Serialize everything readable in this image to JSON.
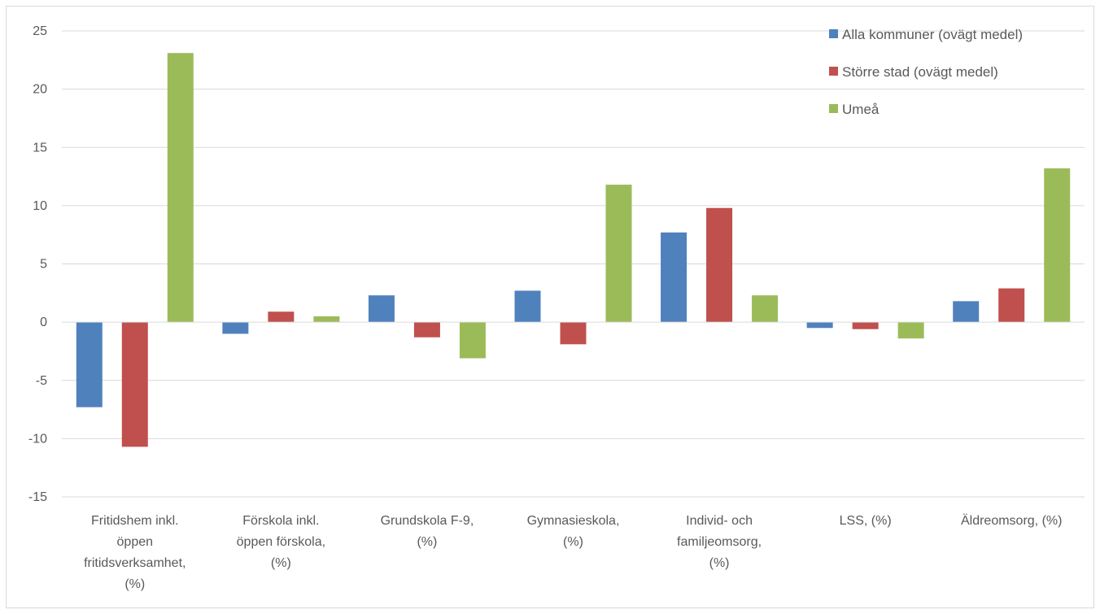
{
  "chart_data": {
    "type": "bar",
    "title": "",
    "xlabel": "",
    "ylabel": "",
    "ylim": [
      -15,
      25
    ],
    "yticks": [
      -15,
      -10,
      -5,
      0,
      5,
      10,
      15,
      20,
      25
    ],
    "ytick_labels": [
      "-15",
      "-10",
      "-5",
      "0",
      "5",
      "10",
      "15",
      "20",
      "25"
    ],
    "grid": true,
    "legend_position": "top-right",
    "categories": [
      [
        "Fritidshem inkl.",
        "öppen",
        "fritidsverksamhet,",
        "(%)"
      ],
      [
        "Förskola inkl.",
        "öppen förskola,",
        "(%)"
      ],
      [
        "Grundskola F-9,",
        "(%)"
      ],
      [
        "Gymnasieskola,",
        "(%)"
      ],
      [
        "Individ- och",
        "familjeomsorg,",
        "(%)"
      ],
      [
        "LSS, (%)"
      ],
      [
        "Äldreomsorg, (%)"
      ]
    ],
    "series": [
      {
        "name": "Alla kommuner (ovägt medel)",
        "color": "#4f81bd",
        "values": [
          -7.3,
          -1.0,
          2.3,
          2.7,
          7.7,
          -0.5,
          1.8
        ]
      },
      {
        "name": "Större stad (ovägt medel)",
        "color": "#c0504d",
        "values": [
          -10.7,
          0.9,
          -1.3,
          -1.9,
          9.8,
          -0.6,
          2.9
        ]
      },
      {
        "name": "Umeå",
        "color": "#9bbb59",
        "values": [
          23.1,
          0.5,
          -3.1,
          11.8,
          2.3,
          -1.4,
          13.2
        ]
      }
    ]
  }
}
